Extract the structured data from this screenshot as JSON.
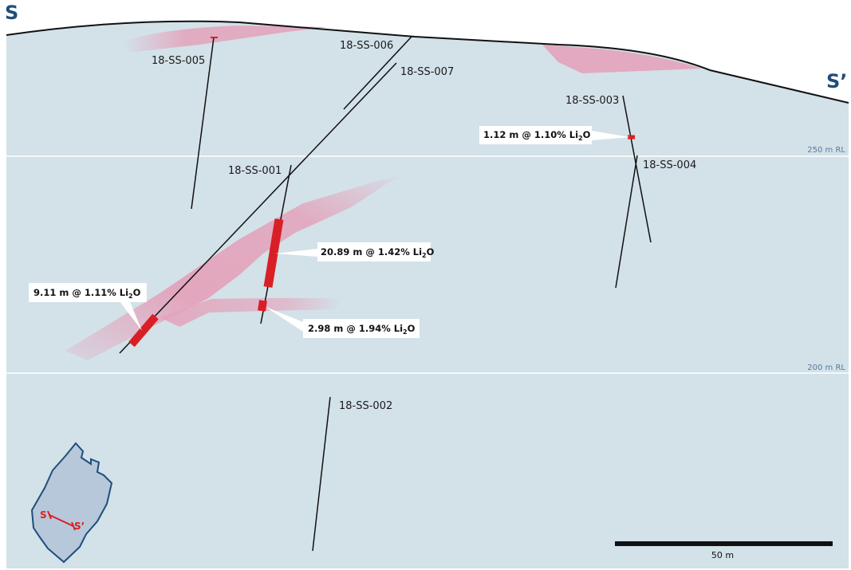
{
  "section": {
    "start_label": "S",
    "end_label": "S’"
  },
  "levels": [
    {
      "label": "250 m RL"
    },
    {
      "label": "200 m RL"
    }
  ],
  "drillholes": [
    {
      "id": "18-SS-001"
    },
    {
      "id": "18-SS-002"
    },
    {
      "id": "18-SS-003"
    },
    {
      "id": "18-SS-004"
    },
    {
      "id": "18-SS-005"
    },
    {
      "id": "18-SS-006"
    },
    {
      "id": "18-SS-007"
    }
  ],
  "intercepts": [
    {
      "length": "20.89 m @ 1.42% Li",
      "sub": "2",
      "tail": "O",
      "hole": "18-SS-001"
    },
    {
      "length": "9.11 m @ 1.11% Li",
      "sub": "2",
      "tail": "O",
      "hole": "18-SS-007"
    },
    {
      "length": "2.98 m @ 1.94% Li",
      "sub": "2",
      "tail": "O",
      "hole": "18-SS-001"
    },
    {
      "length": "1.12 m @ 1.10% Li",
      "sub": "2",
      "tail": "O",
      "hole": "18-SS-003"
    }
  ],
  "scale_bar": {
    "label": "50 m"
  },
  "inset_map": {
    "start_label": "S",
    "end_label": "S’"
  },
  "colors": {
    "background": "#d3e1e8",
    "pegmatite": "#e3a3bb",
    "intercept": "#d91f26",
    "section_line": "#1f4e79",
    "drillhole": "#111111"
  }
}
